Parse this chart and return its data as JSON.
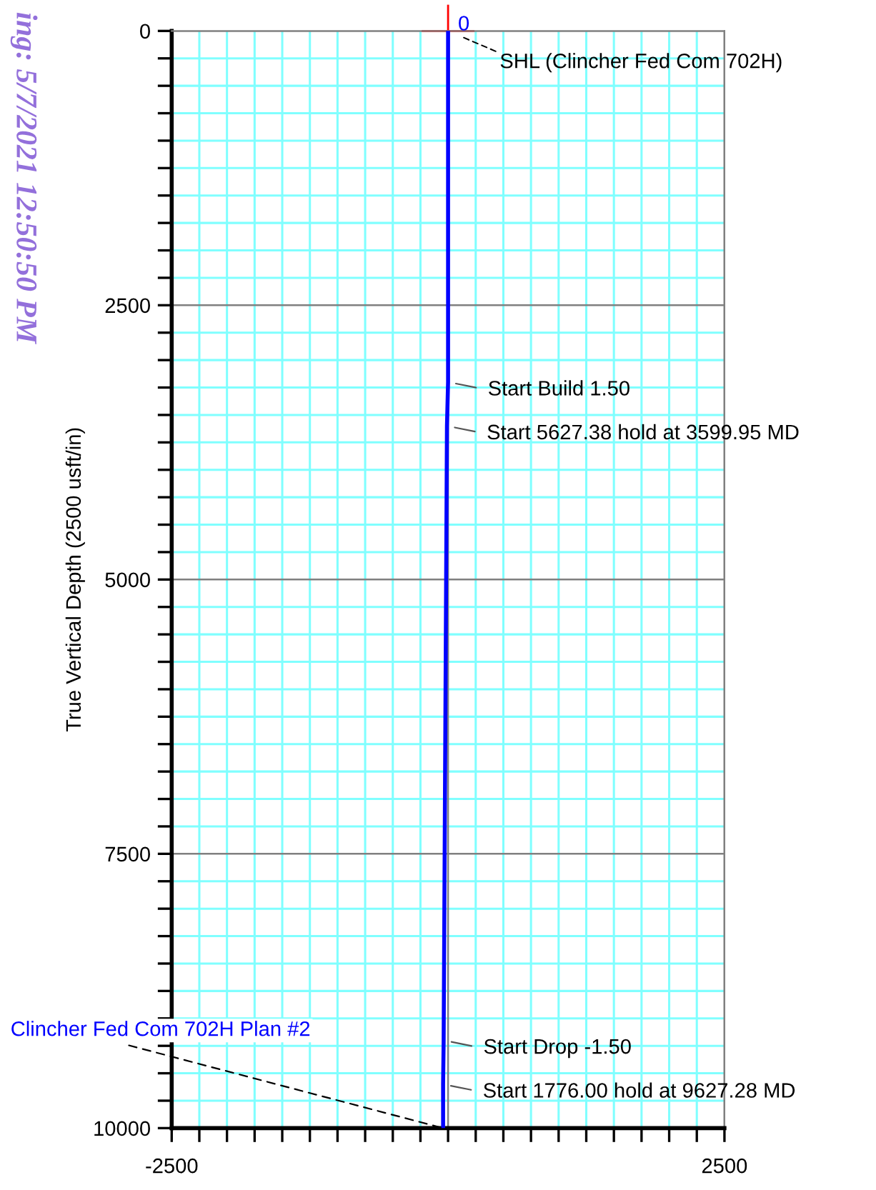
{
  "chart_data": {
    "type": "line",
    "ylabel": "True Vertical Depth (2500 usft/in)",
    "x": [
      0,
      0,
      -10,
      -40,
      -45,
      -45
    ],
    "series": [
      {
        "name": "Clincher Fed Com 702H Plan #2",
        "color": "#0000ff",
        "values": [
          0,
          3200,
          3600,
          9200,
          9600,
          10000
        ]
      }
    ],
    "xlim": [
      -2500,
      2500
    ],
    "ylim": [
      10000,
      0
    ],
    "xticks": [
      -2500,
      {
        "value": -2250,
        "label": null
      },
      {
        "value": -2000,
        "label": null
      },
      {
        "value": -1750,
        "label": null
      },
      {
        "value": -1500,
        "label": null
      },
      {
        "value": -1250,
        "label": null
      },
      {
        "value": -1000,
        "label": null
      },
      {
        "value": -750,
        "label": null
      },
      {
        "value": -500,
        "label": null
      },
      {
        "value": -250,
        "label": null
      },
      {
        "value": 0,
        "label": null
      },
      {
        "value": 250,
        "label": null
      },
      {
        "value": 500,
        "label": null
      },
      {
        "value": 750,
        "label": null
      },
      {
        "value": 1000,
        "label": null
      },
      {
        "value": 1250,
        "label": null
      },
      {
        "value": 1500,
        "label": null
      },
      {
        "value": 1750,
        "label": null
      },
      {
        "value": 2000,
        "label": null
      },
      {
        "value": 2250,
        "label": null
      },
      2500
    ],
    "yticks": [
      0,
      {
        "value": 250,
        "label": null
      },
      {
        "value": 500,
        "label": null
      },
      {
        "value": 750,
        "label": null
      },
      {
        "value": 1000,
        "label": null
      },
      {
        "value": 1250,
        "label": null
      },
      {
        "value": 1500,
        "label": null
      },
      {
        "value": 1750,
        "label": null
      },
      {
        "value": 2000,
        "label": null
      },
      {
        "value": 2250,
        "label": null
      },
      2500,
      {
        "value": 2750,
        "label": null
      },
      {
        "value": 3000,
        "label": null
      },
      {
        "value": 3250,
        "label": null
      },
      {
        "value": 3500,
        "label": null
      },
      {
        "value": 3750,
        "label": null
      },
      {
        "value": 4000,
        "label": null
      },
      {
        "value": 4250,
        "label": null
      },
      {
        "value": 4500,
        "label": null
      },
      {
        "value": 4750,
        "label": null
      },
      5000,
      {
        "value": 5250,
        "label": null
      },
      {
        "value": 5500,
        "label": null
      },
      {
        "value": 5750,
        "label": null
      },
      {
        "value": 6000,
        "label": null
      },
      {
        "value": 6250,
        "label": null
      },
      {
        "value": 6500,
        "label": null
      },
      {
        "value": 6750,
        "label": null
      },
      {
        "value": 7000,
        "label": null
      },
      {
        "value": 7250,
        "label": null
      },
      7500,
      {
        "value": 7750,
        "label": null
      },
      {
        "value": 8000,
        "label": null
      },
      {
        "value": 8250,
        "label": null
      },
      {
        "value": 8500,
        "label": null
      },
      {
        "value": 8750,
        "label": null
      },
      {
        "value": 9000,
        "label": null
      },
      {
        "value": 9250,
        "label": null
      },
      {
        "value": 9500,
        "label": null
      },
      {
        "value": 9750,
        "label": null
      },
      10000
    ],
    "grid": true,
    "legend": false,
    "line_style": "solid",
    "marker": "none",
    "annotations": [
      {
        "text": "0",
        "x": 0,
        "y": 0
      },
      {
        "text": "SHL (Clincher Fed Com 702H)",
        "x": 0,
        "y": 0
      },
      {
        "text": "Start Build 1.50",
        "x": 0,
        "y": 3200
      },
      {
        "text": "Start 5627.38 hold at 3599.95 MD",
        "x": -10,
        "y": 3600
      },
      {
        "text": "Start Drop -1.50",
        "x": -40,
        "y": 9200
      },
      {
        "text": "Start 1776.00 hold at 9627.28 MD",
        "x": -45,
        "y": 9600
      },
      "ing: 5/7/2021 12:50:50 PM"
    ]
  }
}
